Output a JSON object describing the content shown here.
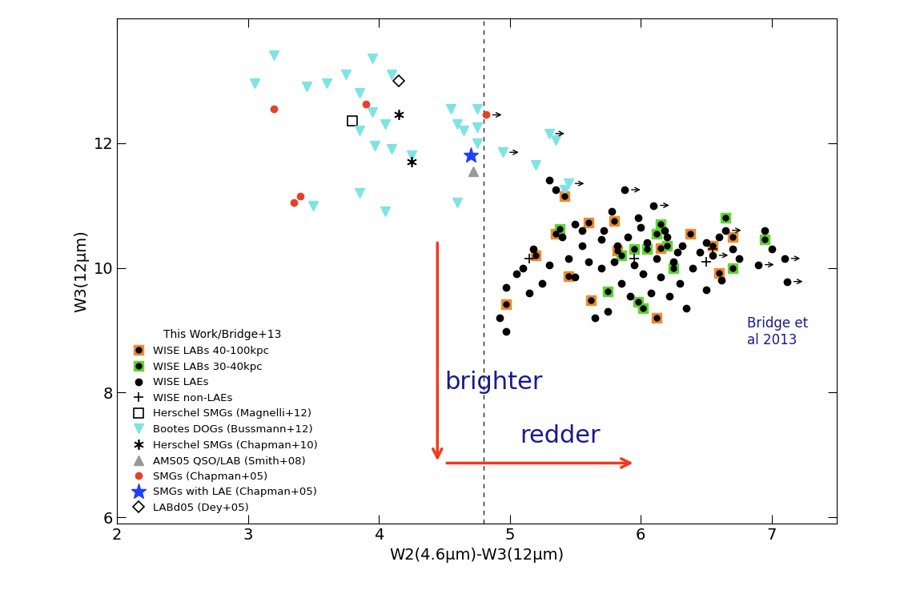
{
  "chart_data": {
    "type": "scatter",
    "x_label": "W2(4.6μm)-W3(12μm)",
    "y_label": "W3(12μm)",
    "xlim": [
      2,
      7.5
    ],
    "ylim": [
      5.9,
      14
    ],
    "xticks": [
      2,
      3,
      4,
      5,
      6,
      7
    ],
    "yticks": [
      6,
      8,
      10,
      12
    ],
    "vertical_line_x": 4.8,
    "legend": "lower left",
    "legend_title": "This Work/Bridge+13",
    "annotations": [
      "brighter",
      "redder",
      "Bridge et\nal 2013"
    ],
    "series": [
      {
        "name": "WISE LABs 40-100kpc",
        "color": "#f0892e",
        "marker": "square_dot",
        "x": [
          5.42,
          5.35,
          5.6,
          5.8,
          5.2,
          4.97,
          5.45,
          5.62,
          6.12,
          6.15,
          6.38,
          6.55,
          6.6,
          6.7,
          5.82
        ],
        "y": [
          11.15,
          10.55,
          10.72,
          10.75,
          10.2,
          9.42,
          9.87,
          9.48,
          9.2,
          10.32,
          10.55,
          10.35,
          9.92,
          10.5,
          10.28
        ],
        "x_lower_limit": [
          false,
          false,
          false,
          false,
          false,
          false,
          false,
          false,
          false,
          false,
          false,
          false,
          false,
          false,
          false
        ]
      },
      {
        "name": "WISE LABs 30-40kpc",
        "color": "#5fd42f",
        "marker": "square_dot",
        "x": [
          5.38,
          5.75,
          5.85,
          5.98,
          6.02,
          6.05,
          6.12,
          6.15,
          6.2,
          6.25,
          6.65,
          6.7,
          6.95,
          5.95
        ],
        "y": [
          10.62,
          9.62,
          10.2,
          9.45,
          9.35,
          10.3,
          10.55,
          10.7,
          10.35,
          10.0,
          10.8,
          10.0,
          10.45,
          10.3
        ],
        "x_lower_limit": [
          false,
          false,
          false,
          false,
          false,
          false,
          false,
          false,
          false,
          false,
          false,
          false,
          false,
          false
        ]
      },
      {
        "name": "WISE LAEs",
        "color": "#000000",
        "marker": "circle",
        "x": [
          4.92,
          4.97,
          4.97,
          5.05,
          5.1,
          5.15,
          5.18,
          5.25,
          5.3,
          5.3,
          5.35,
          5.4,
          5.45,
          5.5,
          5.55,
          5.55,
          5.6,
          5.65,
          5.7,
          5.7,
          5.72,
          5.75,
          5.78,
          5.8,
          5.82,
          5.85,
          5.88,
          5.9,
          5.92,
          5.95,
          5.98,
          6.0,
          6.02,
          6.05,
          6.08,
          6.1,
          6.12,
          6.15,
          6.18,
          6.2,
          6.22,
          6.25,
          6.28,
          6.3,
          6.32,
          6.35,
          6.4,
          6.45,
          6.5,
          6.5,
          6.55,
          6.6,
          6.62,
          6.65,
          6.7,
          6.75,
          6.9,
          6.95,
          7.0,
          7.1,
          7.12,
          5.5
        ],
        "y": [
          9.2,
          8.98,
          9.68,
          9.9,
          10.0,
          9.6,
          10.3,
          9.75,
          10.05,
          11.4,
          11.25,
          10.5,
          10.15,
          9.85,
          10.35,
          10.6,
          10.1,
          9.2,
          10.0,
          10.45,
          10.6,
          9.3,
          10.9,
          10.1,
          10.35,
          9.75,
          11.25,
          10.5,
          9.55,
          10.05,
          10.8,
          10.65,
          9.9,
          10.4,
          9.6,
          11.0,
          10.15,
          9.85,
          10.6,
          10.5,
          9.55,
          10.1,
          10.25,
          9.75,
          10.35,
          9.35,
          10.0,
          10.25,
          10.4,
          9.65,
          10.2,
          10.5,
          9.8,
          10.6,
          10.3,
          10.15,
          10.05,
          10.6,
          10.3,
          10.15,
          9.78,
          10.7
        ],
        "x_lower_limit": [
          false,
          false,
          false,
          false,
          false,
          false,
          false,
          false,
          false,
          false,
          false,
          false,
          false,
          false,
          false,
          false,
          false,
          false,
          false,
          false,
          false,
          false,
          false,
          false,
          false,
          false,
          true,
          false,
          false,
          false,
          false,
          false,
          false,
          false,
          false,
          true,
          false,
          false,
          false,
          false,
          false,
          false,
          false,
          false,
          false,
          false,
          false,
          false,
          false,
          false,
          true,
          false,
          false,
          true,
          false,
          false,
          true,
          false,
          false,
          true,
          true,
          false
        ]
      },
      {
        "name": "WISE non-LAEs",
        "color": "#000000",
        "marker": "plus",
        "x": [
          5.15,
          5.95,
          6.5,
          6.55
        ],
        "y": [
          10.15,
          10.15,
          10.1,
          10.3
        ],
        "x_lower_limit": [
          false,
          false,
          false,
          false
        ]
      },
      {
        "name": "Herschel SMGs (Magnelli+12)",
        "color": "#000000",
        "marker": "open_square",
        "x": [
          3.8
        ],
        "y": [
          12.35
        ],
        "x_lower_limit": [
          false
        ]
      },
      {
        "name": "Bootes DOGs (Bussmann+12)",
        "color": "#7fe3e3",
        "marker": "triangle_down",
        "x": [
          3.05,
          3.2,
          3.45,
          3.6,
          3.75,
          3.95,
          4.1,
          3.85,
          3.95,
          4.05,
          3.85,
          3.97,
          4.1,
          4.25,
          4.55,
          4.6,
          4.65,
          4.75,
          4.75,
          4.95,
          5.2,
          5.3,
          5.35,
          5.45,
          5.42,
          3.5,
          3.85,
          4.05,
          4.6,
          4.75
        ],
        "y": [
          12.95,
          13.4,
          12.9,
          12.95,
          13.1,
          13.35,
          13.1,
          12.8,
          12.5,
          12.3,
          12.2,
          11.95,
          11.9,
          11.8,
          12.55,
          12.3,
          12.2,
          12.55,
          12.25,
          11.85,
          11.65,
          12.15,
          12.05,
          11.35,
          11.25,
          11.0,
          11.2,
          10.9,
          11.05,
          12.0
        ],
        "x_lower_limit": [
          false,
          false,
          false,
          false,
          false,
          false,
          false,
          false,
          false,
          false,
          false,
          false,
          false,
          false,
          false,
          false,
          false,
          false,
          false,
          true,
          false,
          true,
          false,
          true,
          false,
          false,
          false,
          false,
          false,
          false
        ]
      },
      {
        "name": "Herschel SMGs (Chapman+10)",
        "color": "#000000",
        "marker": "asterisk",
        "x": [
          4.15,
          4.25
        ],
        "y": [
          12.45,
          11.7
        ],
        "x_lower_limit": [
          false,
          false
        ]
      },
      {
        "name": "AMS05 QSO/LAB (Smith+08)",
        "color": "#999999",
        "marker": "triangle_up",
        "x": [
          4.72
        ],
        "y": [
          11.55
        ],
        "x_lower_limit": [
          false
        ]
      },
      {
        "name": "SMGs (Chapman+05)",
        "color": "#e8402a",
        "marker": "circle",
        "x": [
          3.2,
          3.9,
          3.35,
          3.4,
          4.82
        ],
        "y": [
          12.55,
          12.62,
          11.05,
          11.15,
          12.45
        ],
        "x_lower_limit": [
          false,
          false,
          false,
          false,
          true
        ]
      },
      {
        "name": "SMGs with LAE (Chapman+05)",
        "color": "#1f3fff",
        "marker": "star",
        "x": [
          4.7
        ],
        "y": [
          11.8
        ],
        "x_lower_limit": [
          false
        ]
      },
      {
        "name": "LABd05 (Dey+05)",
        "color": "#000000",
        "marker": "open_diamond",
        "x": [
          4.15
        ],
        "y": [
          13.0
        ],
        "x_lower_limit": [
          false
        ]
      }
    ]
  }
}
